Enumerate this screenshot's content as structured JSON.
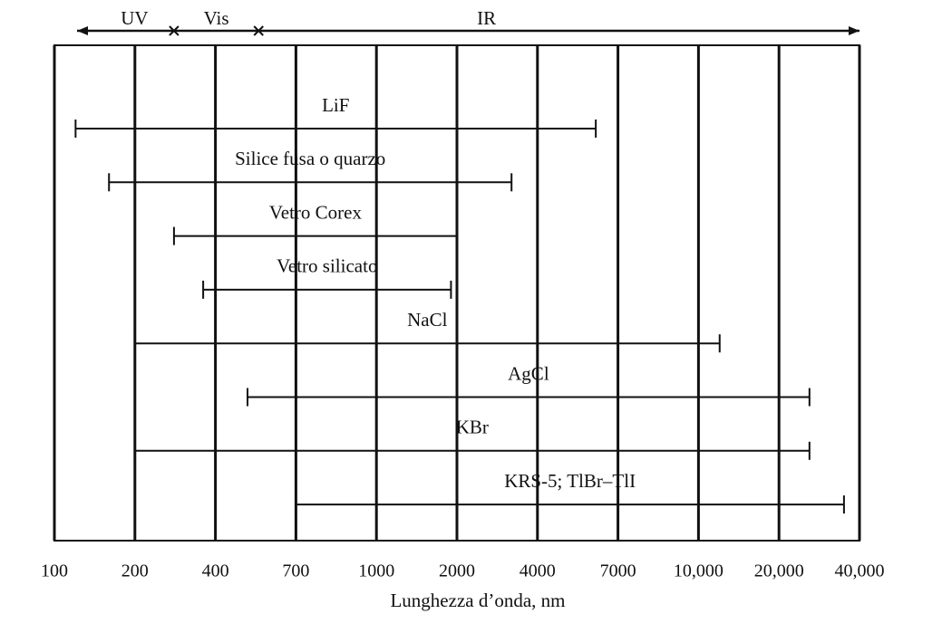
{
  "chart_data": {
    "type": "range",
    "x_label": "Lunghezza d’onda, nm",
    "xlim": [
      100,
      40000
    ],
    "xticks": [
      100,
      200,
      400,
      700,
      1000,
      2000,
      4000,
      7000,
      {
        "value": 10000,
        "label": "10,000"
      },
      {
        "value": 20000,
        "label": "20,000"
      },
      {
        "value": 40000,
        "label": "40,000"
      }
    ],
    "regions": [
      "UV",
      "Vis",
      "IR"
    ],
    "region_boundaries": [
      280,
      540
    ],
    "bars": [
      {
        "name": "LiF",
        "range": [
          120,
          6000
        ]
      },
      {
        "name": "Silice fusa o quarzo",
        "range": [
          160,
          3200
        ]
      },
      {
        "name": "Vetro Corex",
        "range": [
          280,
          2000
        ]
      },
      {
        "name": "Vetro silicato",
        "range": [
          360,
          1900
        ]
      },
      {
        "name": "NaCl",
        "range": [
          200,
          12000
        ]
      },
      {
        "name": "AgCl",
        "range": [
          500,
          26000
        ]
      },
      {
        "name": "KBr",
        "range": [
          200,
          26000
        ]
      },
      {
        "name": "KRS-5; TlBr–TlI",
        "range": [
          700,
          35000
        ]
      }
    ],
    "color": "#111111"
  }
}
